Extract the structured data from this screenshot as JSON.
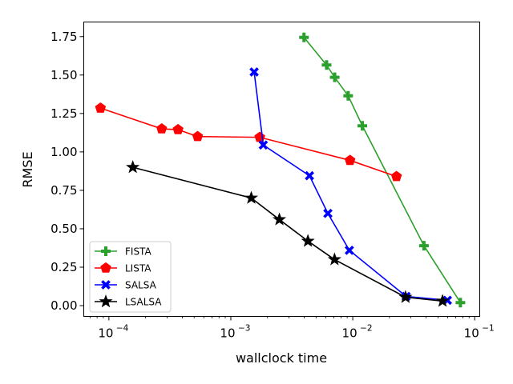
{
  "chart_data": {
    "type": "line",
    "xlabel": "wallclock time",
    "ylabel": "RMSE",
    "xscale": "log",
    "xlim": [
      6.22e-05,
      0.11
    ],
    "ylim": [
      -0.07,
      1.845
    ],
    "grid": false,
    "legend_position": "lower-left",
    "x_ticks": [
      {
        "value": 0.0001,
        "base": "10",
        "exp": "−4"
      },
      {
        "value": 0.001,
        "base": "10",
        "exp": "−3"
      },
      {
        "value": 0.01,
        "base": "10",
        "exp": "−2"
      },
      {
        "value": 0.1,
        "base": "10",
        "exp": "−1"
      }
    ],
    "y_ticks": [
      "0.00",
      "0.25",
      "0.50",
      "0.75",
      "1.00",
      "1.25",
      "1.50",
      "1.75"
    ],
    "series": [
      {
        "name": "FISTA",
        "color": "#2ca02c",
        "marker": "plus",
        "x": [
          0.00398,
          0.0061,
          0.00711,
          0.00917,
          0.01199,
          0.03836,
          0.07637
        ],
        "y": [
          1.745,
          1.565,
          1.485,
          1.365,
          1.17,
          0.39,
          0.02
        ]
      },
      {
        "name": "LISTA",
        "color": "#ff0000",
        "marker": "pentagon",
        "x": [
          8.53e-05,
          0.000271,
          0.000369,
          0.000534,
          0.001728,
          0.009487,
          0.02283
        ],
        "y": [
          1.285,
          1.15,
          1.145,
          1.1,
          1.095,
          0.945,
          0.84
        ]
      },
      {
        "name": "SALSA",
        "color": "#0000ff",
        "marker": "x",
        "x": [
          0.001553,
          0.001846,
          0.004415,
          0.006252,
          0.009379,
          0.02738,
          0.0597
        ],
        "y": [
          1.52,
          1.045,
          0.845,
          0.6,
          0.36,
          0.06,
          0.035
        ]
      },
      {
        "name": "LSALSA",
        "color": "#000000",
        "marker": "star",
        "x": [
          0.000157,
          0.001471,
          0.002501,
          0.004287,
          0.007088,
          0.02708,
          0.05448
        ],
        "y": [
          0.9,
          0.7,
          0.56,
          0.42,
          0.3,
          0.055,
          0.03
        ]
      }
    ]
  }
}
